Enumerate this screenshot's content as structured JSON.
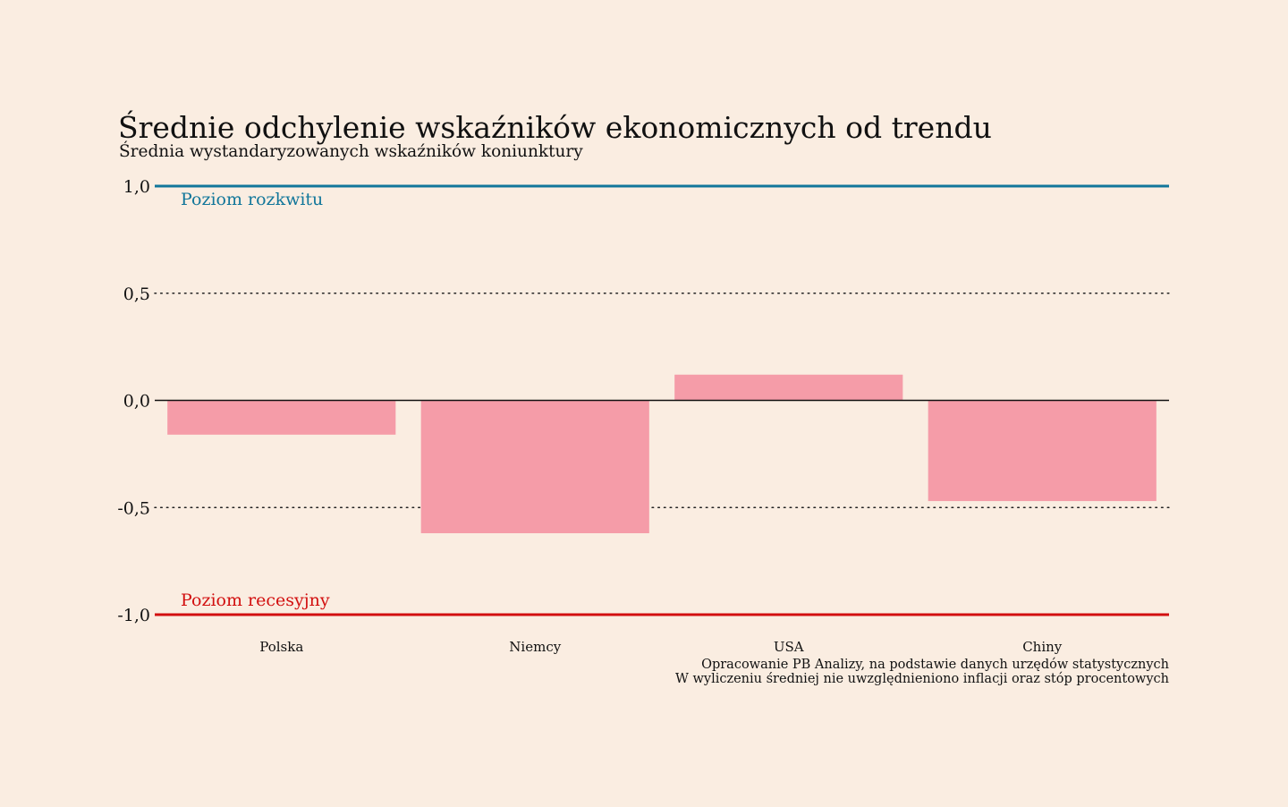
{
  "page": {
    "background_color": "#faede1"
  },
  "chart_data": {
    "type": "bar",
    "title": "Średnie odchylenie wskaźników ekonomicznych od trendu",
    "subtitle": "Średnia wystandaryzowanych wskaźników koniunktury",
    "categories": [
      "Polska",
      "Niemcy",
      "USA",
      "Chiny"
    ],
    "values": [
      -0.16,
      -0.62,
      0.12,
      -0.47
    ],
    "ylim": [
      -1.0,
      1.0
    ],
    "yticks": [
      {
        "value": 1.0,
        "label": "1,0"
      },
      {
        "value": 0.5,
        "label": "0,5"
      },
      {
        "value": 0.0,
        "label": "0,0"
      },
      {
        "value": -0.5,
        "label": "-0,5"
      },
      {
        "value": -1.0,
        "label": "-1,0"
      }
    ],
    "reference_lines": [
      {
        "value": 1.0,
        "label": "Poziom rozkwitu",
        "color": "#11769a"
      },
      {
        "value": -1.0,
        "label": "Poziom recesyjny",
        "color": "#d20f0f"
      }
    ],
    "bar_color": "#f59ca8",
    "grid": "dotted at ±0,5",
    "xlabel": "",
    "ylabel": ""
  },
  "source": {
    "line1": "Opracowanie PB Analizy, na podstawie danych urzędów statystycznych",
    "line2": "W wyliczeniu średniej nie uwzględnieniono inflacji oraz stóp procentowych"
  }
}
